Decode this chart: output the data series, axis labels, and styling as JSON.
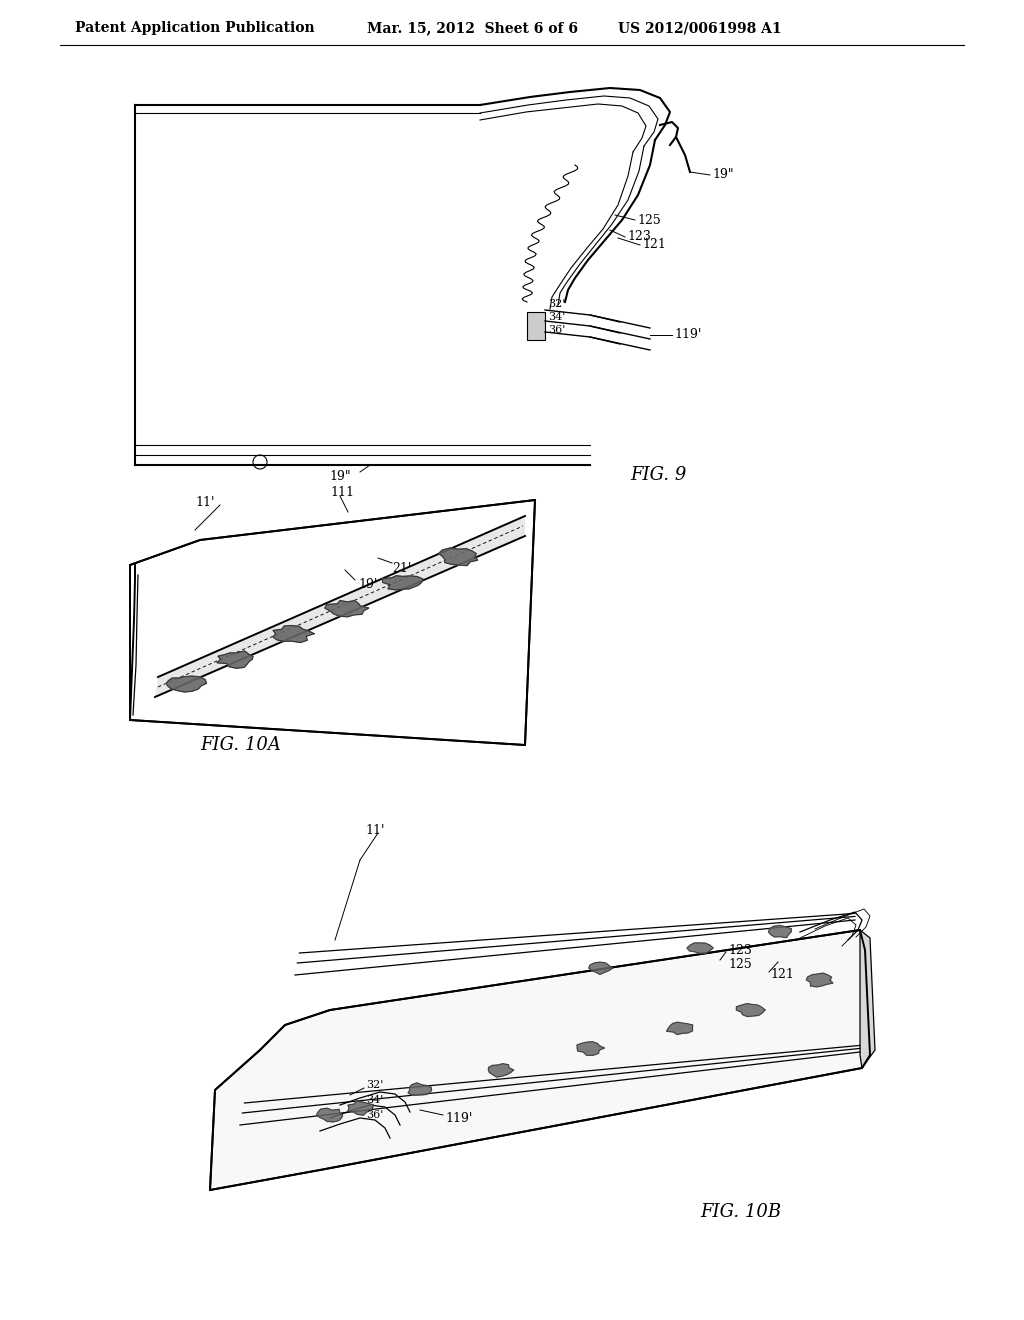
{
  "background_color": "#ffffff",
  "header_left": "Patent Application Publication",
  "header_mid": "Mar. 15, 2012  Sheet 6 of 6",
  "header_right": "US 2012/0061998 A1",
  "fig9_label": "FIG. 9",
  "fig10a_label": "FIG. 10A",
  "fig10b_label": "FIG. 10B",
  "line_color": "#000000",
  "fill_white": "#ffffff",
  "fill_light": "#f5f5f5",
  "fill_mid": "#e0e0e0",
  "fill_dark": "#888888"
}
